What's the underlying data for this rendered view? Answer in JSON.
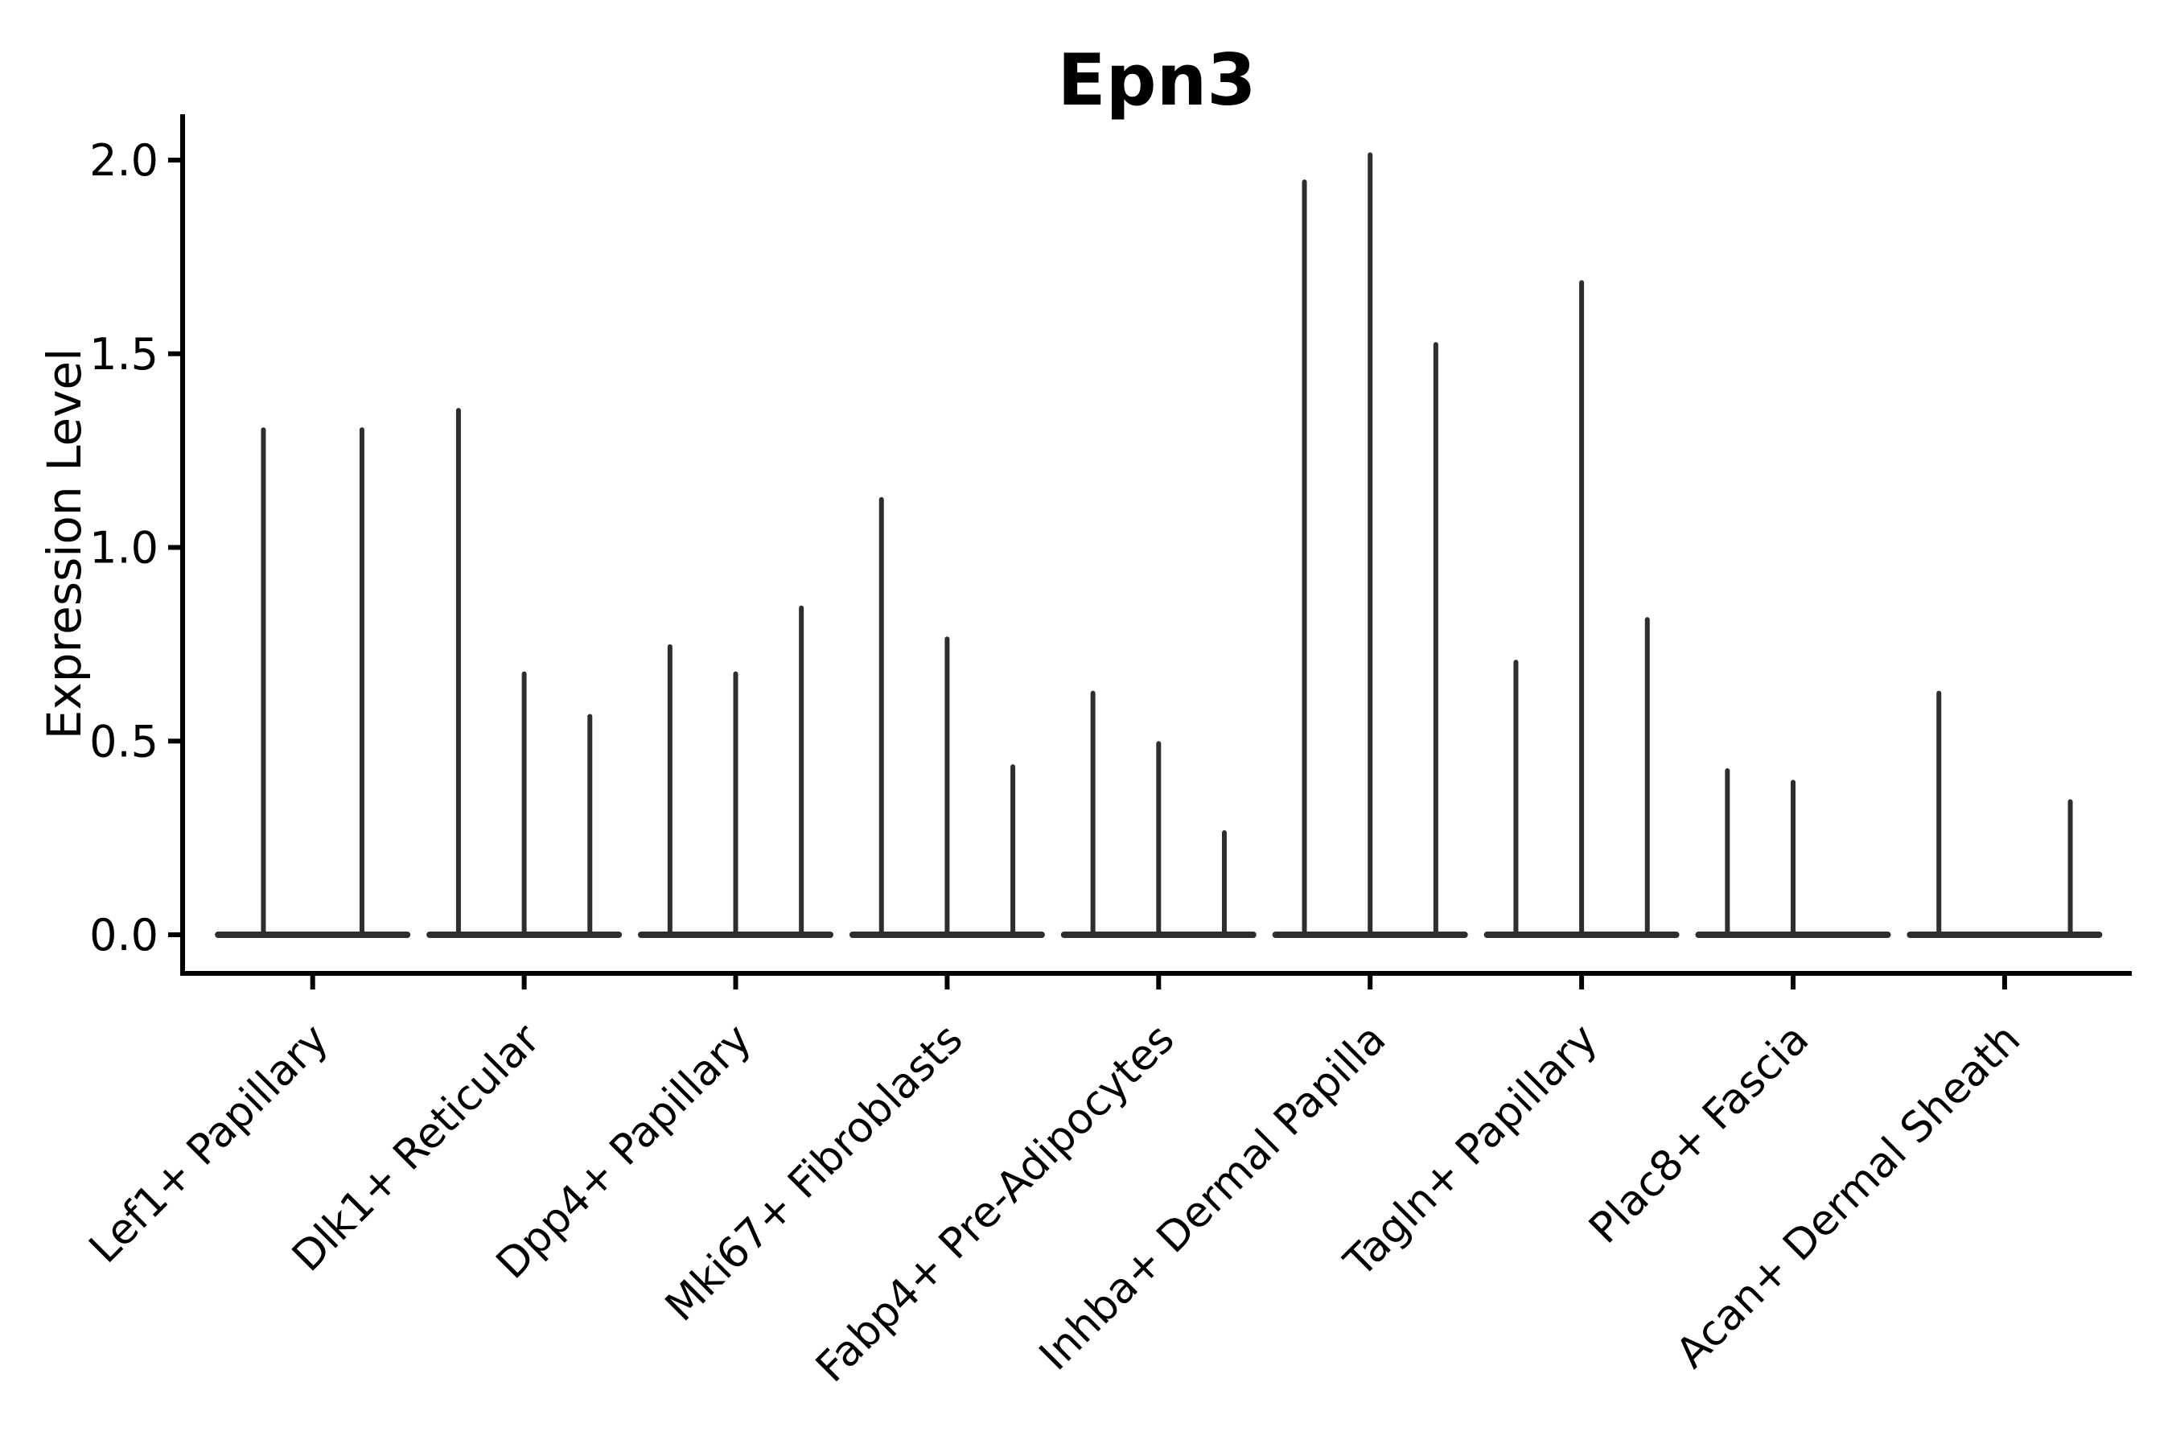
{
  "title": "Epn3",
  "colors": {
    "violin": "#2e2e2e",
    "axis": "#000000",
    "text": "#000000",
    "background": "#ffffff"
  },
  "chart_data": {
    "type": "violin",
    "title": "Epn3",
    "xlabel": "",
    "ylabel": "Expression Level",
    "ylim": [
      -0.1,
      2.12
    ],
    "yticks": [
      0.0,
      0.5,
      1.0,
      1.5,
      2.0
    ],
    "ytick_labels": [
      "0.0",
      "0.5",
      "1.0",
      "1.5",
      "2.0"
    ],
    "grid": "off",
    "legend": "none",
    "categories": [
      "Lef1+ Papillary",
      "Dlk1+ Reticular",
      "Dpp4+ Papillary",
      "Mki67+ Fibroblasts",
      "Fabp4+ Pre-Adipocytes",
      "Inhba+ Dermal Papilla",
      "Tagln+ Papillary",
      "Plac8+ Fascia",
      "Acan+ Dermal Sheath"
    ],
    "series": [
      {
        "category": "Lef1+ Papillary",
        "violin_maxima": [
          1.31,
          1.31
        ]
      },
      {
        "category": "Dlk1+ Reticular",
        "violin_maxima": [
          1.36,
          0.68,
          0.57
        ]
      },
      {
        "category": "Dpp4+ Papillary",
        "violin_maxima": [
          0.75,
          0.68,
          0.85
        ]
      },
      {
        "category": "Mki67+ Fibroblasts",
        "violin_maxima": [
          1.13,
          0.77,
          0.44
        ]
      },
      {
        "category": "Fabp4+ Pre-Adipocytes",
        "violin_maxima": [
          0.63,
          0.5,
          0.27
        ]
      },
      {
        "category": "Inhba+ Dermal Papilla",
        "violin_maxima": [
          1.95,
          2.02,
          1.53
        ]
      },
      {
        "category": "Tagln+ Papillary",
        "violin_maxima": [
          0.71,
          1.69,
          0.82
        ]
      },
      {
        "category": "Plac8+ Fascia",
        "violin_maxima": [
          0.43,
          0.4,
          0
        ]
      },
      {
        "category": "Acan+ Dermal Sheath",
        "violin_maxima": [
          0.63,
          0,
          0.35
        ]
      }
    ],
    "violins_note": "each category shows thin needle violins: flat base at 0 with spike up to max expression; zero entries are flat (no spike)"
  }
}
